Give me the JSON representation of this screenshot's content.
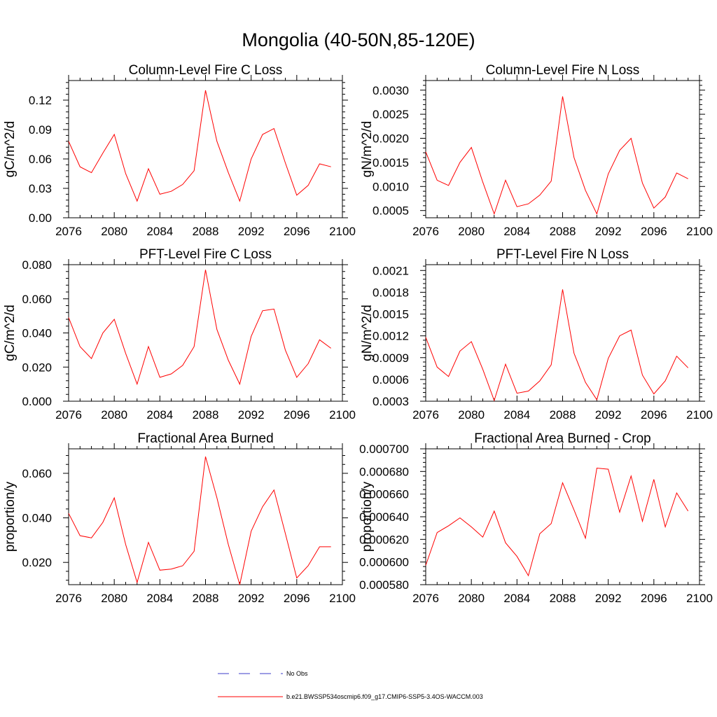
{
  "figure_title": "Mongolia (40-50N,85-120E)",
  "colors": {
    "model": "#ff0000",
    "obs": "#3b3bc8",
    "axis": "#000000"
  },
  "legend": [
    {
      "label": "No Obs",
      "style": "dashed",
      "color": "#3b3bc8"
    },
    {
      "label": "b.e21.BWSSP534oscmip6.f09_g17.CMIP6-SSP5-3.4OS-WACCM.003",
      "style": "solid",
      "color": "#ff0000"
    }
  ],
  "chart_data": [
    {
      "type": "line",
      "title": "Column-Level Fire C Loss",
      "ylabel": "gC/m^2/d",
      "xlim": [
        2076,
        2100
      ],
      "ylim": [
        0.0,
        0.14
      ],
      "xticks": [
        "2076",
        "2080",
        "2084",
        "2088",
        "2092",
        "2096",
        "2100"
      ],
      "yticks": [
        "0.00",
        "0.03",
        "0.06",
        "0.09",
        "0.12"
      ],
      "ytick_values": [
        0.0,
        0.03,
        0.06,
        0.09,
        0.12
      ],
      "x": [
        2076,
        2077,
        2078,
        2079,
        2080,
        2081,
        2082,
        2083,
        2084,
        2085,
        2086,
        2087,
        2088,
        2089,
        2090,
        2091,
        2092,
        2093,
        2094,
        2095,
        2096,
        2097,
        2098,
        2099
      ],
      "values": [
        0.078,
        0.052,
        0.046,
        0.066,
        0.085,
        0.045,
        0.017,
        0.05,
        0.024,
        0.027,
        0.034,
        0.048,
        0.13,
        0.078,
        0.046,
        0.017,
        0.06,
        0.085,
        0.091,
        0.056,
        0.023,
        0.033,
        0.055,
        0.052
      ]
    },
    {
      "type": "line",
      "title": "Column-Level Fire N Loss",
      "ylabel": "gN/m^2/d",
      "xlim": [
        2076,
        2100
      ],
      "ylim": [
        0.00035,
        0.0032
      ],
      "xticks": [
        "2076",
        "2080",
        "2084",
        "2088",
        "2092",
        "2096",
        "2100"
      ],
      "yticks": [
        "0.0005",
        "0.0010",
        "0.0015",
        "0.0020",
        "0.0025",
        "0.0030"
      ],
      "ytick_values": [
        0.0005,
        0.001,
        0.0015,
        0.002,
        0.0025,
        0.003
      ],
      "x": [
        2076,
        2077,
        2078,
        2079,
        2080,
        2081,
        2082,
        2083,
        2084,
        2085,
        2086,
        2087,
        2088,
        2089,
        2090,
        2091,
        2092,
        2093,
        2094,
        2095,
        2096,
        2097,
        2098,
        2099
      ],
      "values": [
        0.00172,
        0.00113,
        0.00102,
        0.0015,
        0.00181,
        0.00109,
        0.00043,
        0.00113,
        0.00058,
        0.00064,
        0.00082,
        0.00111,
        0.00287,
        0.0016,
        0.00092,
        0.00043,
        0.00126,
        0.00175,
        0.002,
        0.00107,
        0.00055,
        0.00078,
        0.00128,
        0.00116
      ]
    },
    {
      "type": "line",
      "title": "PFT-Level Fire C Loss",
      "ylabel": "gC/m^2/d",
      "xlim": [
        2076,
        2100
      ],
      "ylim": [
        0.0,
        0.08
      ],
      "xticks": [
        "2076",
        "2080",
        "2084",
        "2088",
        "2092",
        "2096",
        "2100"
      ],
      "yticks": [
        "0.000",
        "0.020",
        "0.040",
        "0.060",
        "0.080"
      ],
      "ytick_values": [
        0.0,
        0.02,
        0.04,
        0.06,
        0.08
      ],
      "x": [
        2076,
        2077,
        2078,
        2079,
        2080,
        2081,
        2082,
        2083,
        2084,
        2085,
        2086,
        2087,
        2088,
        2089,
        2090,
        2091,
        2092,
        2093,
        2094,
        2095,
        2096,
        2097,
        2098,
        2099
      ],
      "values": [
        0.049,
        0.032,
        0.025,
        0.04,
        0.048,
        0.028,
        0.01,
        0.032,
        0.014,
        0.016,
        0.021,
        0.032,
        0.077,
        0.042,
        0.024,
        0.01,
        0.038,
        0.053,
        0.054,
        0.03,
        0.014,
        0.022,
        0.036,
        0.031
      ]
    },
    {
      "type": "line",
      "title": "PFT-Level Fire N Loss",
      "ylabel": "gN/m^2/d",
      "xlim": [
        2076,
        2100
      ],
      "ylim": [
        0.0003,
        0.00218
      ],
      "xticks": [
        "2076",
        "2080",
        "2084",
        "2088",
        "2092",
        "2096",
        "2100"
      ],
      "yticks": [
        "0.0003",
        "0.0006",
        "0.0009",
        "0.0012",
        "0.0015",
        "0.0018",
        "0.0021"
      ],
      "ytick_values": [
        0.0003,
        0.0006,
        0.0009,
        0.0012,
        0.0015,
        0.0018,
        0.0021
      ],
      "x": [
        2076,
        2077,
        2078,
        2079,
        2080,
        2081,
        2082,
        2083,
        2084,
        2085,
        2086,
        2087,
        2088,
        2089,
        2090,
        2091,
        2092,
        2093,
        2094,
        2095,
        2096,
        2097,
        2098,
        2099
      ],
      "values": [
        0.00118,
        0.00077,
        0.00064,
        0.00099,
        0.00112,
        0.00074,
        0.00031,
        0.00081,
        0.00041,
        0.00044,
        0.00058,
        0.0008,
        0.00184,
        0.00096,
        0.00056,
        0.00032,
        0.00089,
        0.0012,
        0.00128,
        0.00066,
        0.0004,
        0.00058,
        0.00092,
        0.00076
      ]
    },
    {
      "type": "line",
      "title": "Fractional Area Burned",
      "ylabel": "proportion/y",
      "xlim": [
        2076,
        2100
      ],
      "ylim": [
        0.01,
        0.071
      ],
      "xticks": [
        "2076",
        "2080",
        "2084",
        "2088",
        "2092",
        "2096",
        "2100"
      ],
      "yticks": [
        "0.020",
        "0.040",
        "0.060"
      ],
      "ytick_values": [
        0.02,
        0.04,
        0.06
      ],
      "x": [
        2076,
        2077,
        2078,
        2079,
        2080,
        2081,
        2082,
        2083,
        2084,
        2085,
        2086,
        2087,
        2088,
        2089,
        2090,
        2091,
        2092,
        2093,
        2094,
        2095,
        2096,
        2097,
        2098,
        2099
      ],
      "values": [
        0.042,
        0.032,
        0.031,
        0.038,
        0.049,
        0.028,
        0.011,
        0.029,
        0.0165,
        0.017,
        0.0185,
        0.025,
        0.0675,
        0.049,
        0.028,
        0.01,
        0.034,
        0.045,
        0.0525,
        0.033,
        0.013,
        0.0185,
        0.027,
        0.027
      ]
    },
    {
      "type": "line",
      "title": "Fractional Area Burned - Crop",
      "ylabel": "proportion/y",
      "xlim": [
        2076,
        2100
      ],
      "ylim": [
        0.00058,
        0.0007
      ],
      "xticks": [
        "2076",
        "2080",
        "2084",
        "2088",
        "2092",
        "2096",
        "2100"
      ],
      "yticks": [
        "0.000580",
        "0.000600",
        "0.000620",
        "0.000640",
        "0.000660",
        "0.000680",
        "0.000700"
      ],
      "ytick_values": [
        0.00058,
        0.0006,
        0.00062,
        0.00064,
        0.00066,
        0.00068,
        0.0007
      ],
      "x": [
        2076,
        2077,
        2078,
        2079,
        2080,
        2081,
        2082,
        2083,
        2084,
        2085,
        2086,
        2087,
        2088,
        2089,
        2090,
        2091,
        2092,
        2093,
        2094,
        2095,
        2096,
        2097,
        2098,
        2099
      ],
      "values": [
        0.000597,
        0.000626,
        0.000632,
        0.000639,
        0.000631,
        0.000622,
        0.000645,
        0.000617,
        0.000605,
        0.000588,
        0.000625,
        0.000634,
        0.00067,
        0.000646,
        0.000621,
        0.000683,
        0.000682,
        0.000644,
        0.000676,
        0.000636,
        0.000673,
        0.000631,
        0.000661,
        0.000645
      ]
    }
  ]
}
